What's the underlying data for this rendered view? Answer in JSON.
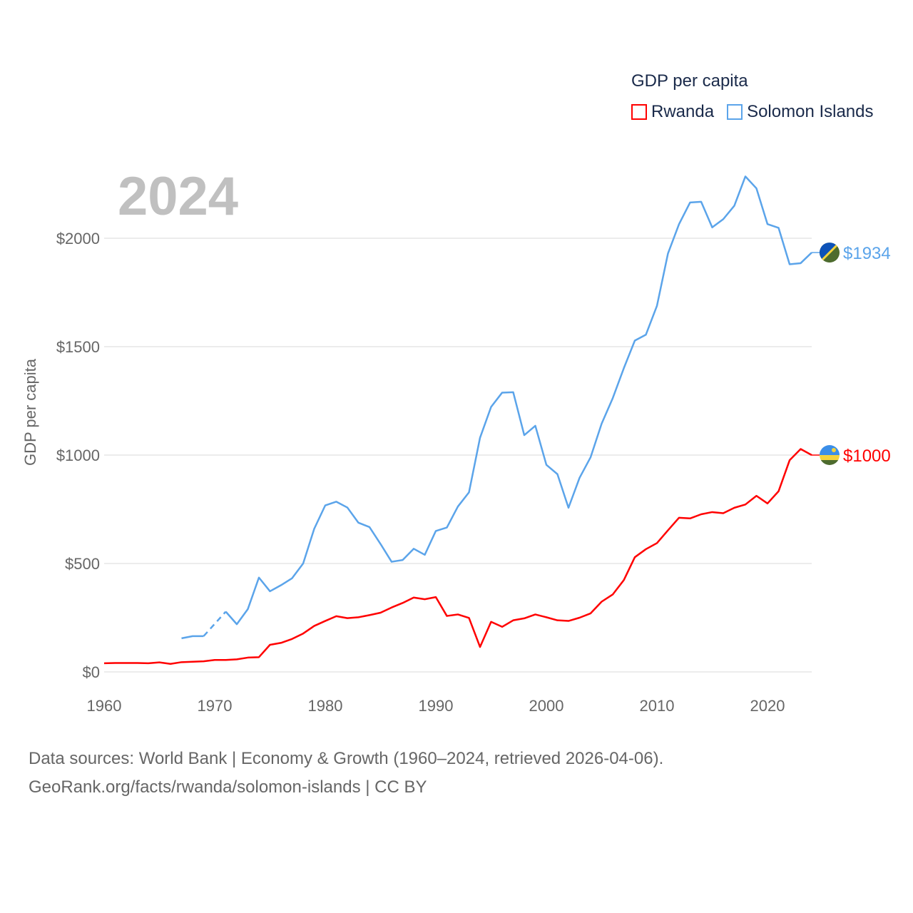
{
  "chart_data": {
    "type": "line",
    "title": "",
    "ylabel": "GDP per capita",
    "xlabel": "",
    "xlim": [
      1960,
      2024
    ],
    "ylim": [
      0,
      2300
    ],
    "x_ticks": [
      1960,
      1970,
      1980,
      1990,
      2000,
      2010,
      2020
    ],
    "x_tick_labels": [
      "1960",
      "1970",
      "1980",
      "1990",
      "2000",
      "2010",
      "2020"
    ],
    "y_ticks": [
      0,
      500,
      1000,
      1500,
      2000
    ],
    "y_tick_labels": [
      "$0",
      "$500",
      "$1000",
      "$1500",
      "$2000"
    ],
    "grid": true,
    "legend_title": "GDP per capita",
    "legend_placement": "top-right",
    "year_label": "2024",
    "x": [
      1960,
      1961,
      1962,
      1963,
      1964,
      1965,
      1966,
      1967,
      1968,
      1969,
      1970,
      1971,
      1972,
      1973,
      1974,
      1975,
      1976,
      1977,
      1978,
      1979,
      1980,
      1981,
      1982,
      1983,
      1984,
      1985,
      1986,
      1987,
      1988,
      1989,
      1990,
      1991,
      1992,
      1993,
      1994,
      1995,
      1996,
      1997,
      1998,
      1999,
      2000,
      2001,
      2002,
      2003,
      2004,
      2005,
      2006,
      2007,
      2008,
      2009,
      2010,
      2011,
      2012,
      2013,
      2014,
      2015,
      2016,
      2017,
      2018,
      2019,
      2020,
      2021,
      2022,
      2023,
      2024
    ],
    "series": [
      {
        "name": "Rwanda",
        "color": "#ff0000",
        "end_label": "$1000",
        "values": [
          40,
          41,
          41,
          41,
          40,
          44,
          37,
          45,
          47,
          49,
          55,
          55,
          58,
          66,
          68,
          125,
          134,
          152,
          177,
          212,
          235,
          257,
          248,
          252,
          262,
          273,
          297,
          318,
          343,
          335,
          345,
          258,
          265,
          249,
          115,
          231,
          208,
          238,
          247,
          265,
          252,
          238,
          235,
          250,
          270,
          324,
          357,
          423,
          529,
          566,
          594,
          653,
          711,
          708,
          727,
          737,
          732,
          757,
          772,
          812,
          777,
          833,
          976,
          1028,
          1000
        ]
      },
      {
        "name": "Solomon Islands",
        "color": "#5ba4ea",
        "end_label": "$1934",
        "values": [
          null,
          null,
          null,
          null,
          null,
          null,
          null,
          155,
          165,
          165,
          null,
          278,
          220,
          290,
          435,
          372,
          400,
          432,
          500,
          660,
          768,
          785,
          758,
          688,
          668,
          590,
          508,
          516,
          568,
          540,
          650,
          666,
          763,
          828,
          1080,
          1222,
          1288,
          1290,
          1092,
          1135,
          955,
          912,
          757,
          895,
          990,
          1145,
          1262,
          1400,
          1528,
          1555,
          1688,
          1930,
          2065,
          2165,
          2168,
          2050,
          2088,
          2150,
          2285,
          2230,
          2065,
          2048,
          1880,
          1885,
          1934
        ]
      }
    ]
  },
  "footer": {
    "line1": "Data sources: World Bank | Economy & Growth (1960–2024, retrieved 2026-04-06).",
    "line2": "GeoRank.org/facts/rwanda/solomon-islands | CC BY"
  }
}
